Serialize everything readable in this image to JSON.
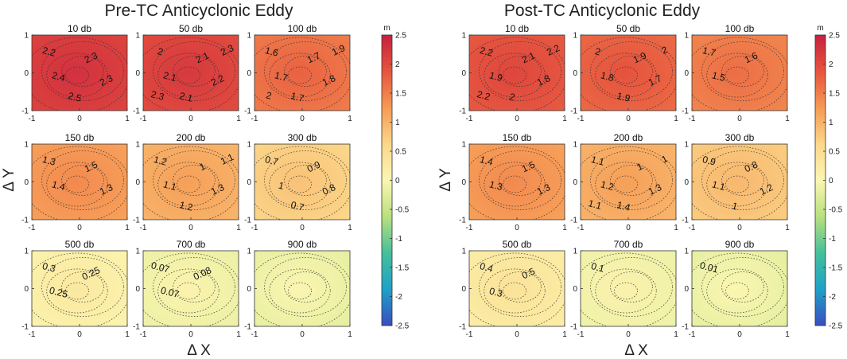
{
  "chart_data": {
    "type": "heatmap",
    "colorbar_unit": "m",
    "colorbar_range": [
      -2.5,
      2.5
    ],
    "colorbar_ticks": [
      "2.5",
      "2",
      "1.5",
      "1",
      "0.5",
      "0",
      "-0.5",
      "-1",
      "-1.5",
      "-2",
      "-2.5"
    ],
    "x_ticks": [
      "-1",
      "0",
      "1"
    ],
    "y_ticks": [
      "1",
      "0",
      "-1"
    ],
    "xlabel": "Δ X",
    "ylabel": "Δ Y",
    "colors": [
      "#3b4cc0",
      "#1ea1c8",
      "#45c09a",
      "#b9e07e",
      "#fbf6b2",
      "#fbd78a",
      "#f69a54",
      "#e6543e",
      "#c8213f"
    ],
    "groups": [
      {
        "title": "Pre-TC Anticyclonic Eddy",
        "panels": [
          {
            "title": "10 db",
            "value": 2.3,
            "labels": [
              "2.2",
              "2.3",
              "2.4",
              "2.3",
              "2.5"
            ]
          },
          {
            "title": "50 db",
            "value": 2.2,
            "labels": [
              "2",
              "2.1",
              "2.1",
              "2.2",
              "2.1",
              "2.3",
              "2.3"
            ]
          },
          {
            "title": "100 db",
            "value": 1.75,
            "labels": [
              "1.6",
              "1.7",
              "1.7",
              "1.8",
              "1.7",
              "1.9",
              "2"
            ]
          },
          {
            "title": "150 db",
            "value": 1.4,
            "labels": [
              "1.3",
              "1.5",
              "1.4",
              "1.3"
            ]
          },
          {
            "title": "200 db",
            "value": 1.2,
            "labels": [
              "1.2",
              "1",
              "1.1",
              "1.3",
              "1.2",
              "1.1"
            ]
          },
          {
            "title": "300 db",
            "value": 0.85,
            "labels": [
              "0.7",
              "0.9",
              "1",
              "0.8",
              "0.7"
            ]
          },
          {
            "title": "500 db",
            "value": 0.28,
            "labels": [
              "0.3",
              "0.25",
              "0.25"
            ]
          },
          {
            "title": "700 db",
            "value": 0.075,
            "labels": [
              "0.07",
              "0.08",
              "0.07"
            ]
          },
          {
            "title": "900 db",
            "value": 0.02,
            "labels": []
          }
        ]
      },
      {
        "title": "Post-TC Anticyclonic Eddy",
        "panels": [
          {
            "title": "10 db",
            "value": 2.05,
            "labels": [
              "2.2",
              "2.1",
              "1.9",
              "1.8",
              "2",
              "2.2",
              "2.2"
            ]
          },
          {
            "title": "50 db",
            "value": 1.9,
            "labels": [
              "2",
              "1.9",
              "1.8",
              "1.7",
              "1.9",
              "2"
            ]
          },
          {
            "title": "100 db",
            "value": 1.65,
            "labels": [
              "1.7",
              "1.6",
              "1.5"
            ]
          },
          {
            "title": "150 db",
            "value": 1.4,
            "labels": [
              "1.4",
              "1.5",
              "1.3",
              "1.3"
            ]
          },
          {
            "title": "200 db",
            "value": 1.2,
            "labels": [
              "1.1",
              "1",
              "1.2",
              "1.3",
              "1.4",
              "1",
              "1.1"
            ]
          },
          {
            "title": "300 db",
            "value": 0.95,
            "labels": [
              "0.9",
              "0.8",
              "1.1",
              "1.2",
              "1"
            ]
          },
          {
            "title": "500 db",
            "value": 0.4,
            "labels": [
              "0.4",
              "0.5",
              "0.3"
            ]
          },
          {
            "title": "700 db",
            "value": 0.1,
            "labels": [
              "0.1"
            ]
          },
          {
            "title": "900 db",
            "value": 0.01,
            "labels": [
              "0.01"
            ]
          }
        ]
      }
    ]
  }
}
